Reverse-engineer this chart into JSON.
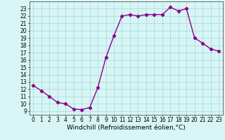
{
  "hours": [
    0,
    1,
    2,
    3,
    4,
    5,
    6,
    7,
    8,
    9,
    10,
    11,
    12,
    13,
    14,
    15,
    16,
    17,
    18,
    19,
    20,
    21,
    22,
    23
  ],
  "values": [
    12.5,
    11.8,
    11.0,
    10.2,
    10.0,
    9.3,
    9.2,
    9.5,
    12.2,
    16.3,
    19.3,
    22.0,
    22.2,
    22.0,
    22.2,
    22.2,
    22.2,
    23.2,
    22.7,
    23.0,
    19.0,
    18.3,
    17.5,
    17.2
  ],
  "line_color": "#8B008B",
  "marker": "D",
  "marker_size": 2.2,
  "bg_color": "#d8f5f5",
  "grid_color": "#aadddd",
  "xlabel": "Windchill (Refroidissement éolien,°C)",
  "xlim": [
    -0.5,
    23.5
  ],
  "ylim": [
    8.5,
    24.0
  ],
  "yticks": [
    9,
    10,
    11,
    12,
    13,
    14,
    15,
    16,
    17,
    18,
    19,
    20,
    21,
    22,
    23
  ],
  "xticks": [
    0,
    1,
    2,
    3,
    4,
    5,
    6,
    7,
    8,
    9,
    10,
    11,
    12,
    13,
    14,
    15,
    16,
    17,
    18,
    19,
    20,
    21,
    22,
    23
  ],
  "tick_label_fontsize": 5.5,
  "xlabel_fontsize": 6.5,
  "line_width": 1.0
}
